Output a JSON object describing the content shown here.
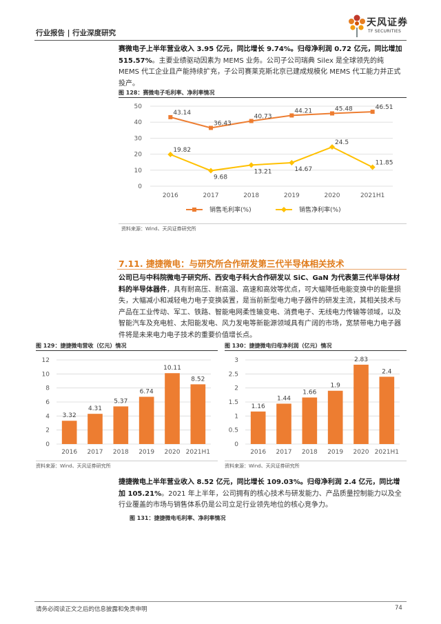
{
  "header": {
    "text": "行业报告 | 行业深度研究",
    "logo_cn": "天风证券",
    "logo_en": "TF SECURITIES"
  },
  "para1": {
    "bold1": "赛微电子上半年营业收入 3.95 亿元，同比增长 9.74%。归母净利润 0.72 亿元，同比增加 515.57%",
    "rest1": "。主要业绩驱动因素为 MEMS 业务。公司子公司瑞典 Silex 是全球领先的纯 MEMS 代工企业且产能持续扩充，子公司赛莱克斯北京已建成规模化 MEMS 代工能力并正式投产。"
  },
  "fig128": {
    "title": "图 128：赛微电子毛利率、净利率情况",
    "source": "资料来源：Wind、天风证券研究所"
  },
  "section": {
    "title": "7.11. 捷捷微电：与研究所合作研发第三代半导体相关技术"
  },
  "para2": {
    "bold": "公司已与中科院微电子研究所、西安电子科大合作研发以 SiC、GaN 为代表第三代半导体材料的半导体器件",
    "rest": "，具有耐高压、耐高温、高速和高效等优点，可大幅降低电能变换中的能量损失，大幅减小和减轻电力电子变换装置，是当前新型电力电子器件的研发主流，其相关技术与产品在工业传动、军工、铁路、智能电网柔性输变电、消费电子、无线电力传输等领域，以及智能汽车及充电桩、太阳能发电、风力发电等新能源领域具有广阔的市场，宽禁带电力电子器件将是未来电力电子技术的重要价值增长点。"
  },
  "fig129": {
    "title": "图 129：捷捷微电营收（亿元）情况",
    "source": "资料来源：Wind、天风证券研究所"
  },
  "fig130": {
    "title": "图 130：捷捷微电归母净利润（亿元）情况",
    "source": "资料来源：Wind、天风证券研究所"
  },
  "para3": {
    "bold": "捷捷微电上半年营业收入 8.52 亿元，同比增长 109.03%。归母净利润 2.4 亿元，同比增加 105.21%",
    "rest": "。2021 年上半年，公司拥有的核心技术与研发能力、产品质量控制能力以及全行业覆盖的市场与销售体系仍是公司立足行业领先地位的核心竞争力。"
  },
  "fig131": {
    "title": "图 131：捷捷微电毛利率、净利率情况"
  },
  "footer": {
    "disclaimer": "请务必阅读正文之后的信息披露和免责申明",
    "page": "74"
  },
  "colors": {
    "orange": "#ed7d31",
    "yellow": "#ffc000",
    "section": "#e07b1a"
  },
  "chart_data": [
    {
      "id": "fig128",
      "type": "line",
      "categories": [
        "2016",
        "2017",
        "2018",
        "2019",
        "2020",
        "2021H1"
      ],
      "series": [
        {
          "name": "销售毛利率(%)",
          "values": [
            43.14,
            36.43,
            40.73,
            44.21,
            45.48,
            46.51
          ],
          "color": "#ed7d31",
          "labels": [
            "43.14",
            "36.43",
            "40.73",
            "44.21",
            "45.48",
            "46.51"
          ]
        },
        {
          "name": "销售净利率(%)",
          "values": [
            19.82,
            9.68,
            13.21,
            14.67,
            24.5,
            11.85
          ],
          "color": "#ffc000",
          "labels": [
            "19.82",
            "9.68",
            "13.21",
            "14.67",
            "24.5",
            "11.85"
          ]
        }
      ],
      "yticks": [
        "0",
        "10",
        "20",
        "30",
        "40",
        "50"
      ],
      "ylim": [
        0,
        50
      ],
      "grid": true,
      "legend": "bottom"
    },
    {
      "id": "fig129",
      "type": "bar",
      "categories": [
        "2016",
        "2017",
        "2018",
        "2019",
        "2020",
        "2021H1"
      ],
      "values": [
        3.32,
        4.31,
        5.37,
        6.74,
        10.11,
        8.52
      ],
      "labels": [
        "3.32",
        "4.31",
        "5.37",
        "6.74",
        "10.11",
        "8.52"
      ],
      "yticks": [
        "0",
        "2",
        "4",
        "6",
        "8",
        "10",
        "12"
      ],
      "ylim": [
        0,
        12
      ],
      "grid": true,
      "color": "#ed7d31"
    },
    {
      "id": "fig130",
      "type": "bar",
      "categories": [
        "2016",
        "2017",
        "2018",
        "2019",
        "2020",
        "2021H1"
      ],
      "values": [
        1.16,
        1.44,
        1.66,
        1.9,
        2.83,
        2.4
      ],
      "labels": [
        "1.16",
        "1.44",
        "1.66",
        "1.9",
        "2.83",
        "2.4"
      ],
      "yticks": [
        "0",
        "0.5",
        "1",
        "1.5",
        "2",
        "2.5",
        "3"
      ],
      "ylim": [
        0,
        3
      ],
      "grid": true,
      "color": "#ed7d31"
    }
  ]
}
